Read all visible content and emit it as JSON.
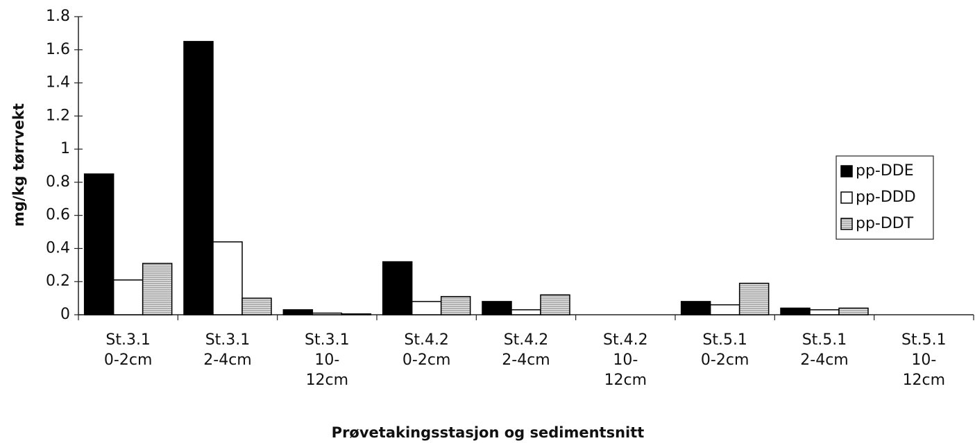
{
  "chart_data": {
    "type": "bar",
    "x_label": "Prøvetakingsstasjon og sedimentsnitt",
    "y_label": "mg/kg tørrvekt",
    "categories": [
      "St.3.1\n0-2cm",
      "St.3.1\n2-4cm",
      "St.3.1\n10-\n12cm",
      "St.4.2\n0-2cm",
      "St.4.2\n2-4cm",
      "St.4.2\n10-\n12cm",
      "St.5.1\n0-2cm",
      "St.5.1\n2-4cm",
      "St.5.1\n10-\n12cm"
    ],
    "series": [
      {
        "name": "pp-DDE",
        "color": "#000000",
        "values": [
          0.85,
          1.65,
          0.03,
          0.32,
          0.08,
          0,
          0.08,
          0.04,
          0
        ]
      },
      {
        "name": "pp-DDD",
        "color": "#ffffff",
        "values": [
          0.21,
          0.44,
          0.01,
          0.08,
          0.03,
          0,
          0.06,
          0.03,
          0
        ]
      },
      {
        "name": "pp-DDT",
        "color": "#8a8a8a",
        "hatch": true,
        "values": [
          0.31,
          0.1,
          0.005,
          0.11,
          0.12,
          0,
          0.19,
          0.04,
          0
        ]
      }
    ],
    "ylim": [
      0,
      1.8
    ],
    "yticks": [
      0,
      0.2,
      0.4,
      0.6,
      0.8,
      1,
      1.2,
      1.4,
      1.6,
      1.8
    ],
    "legend": "right"
  }
}
